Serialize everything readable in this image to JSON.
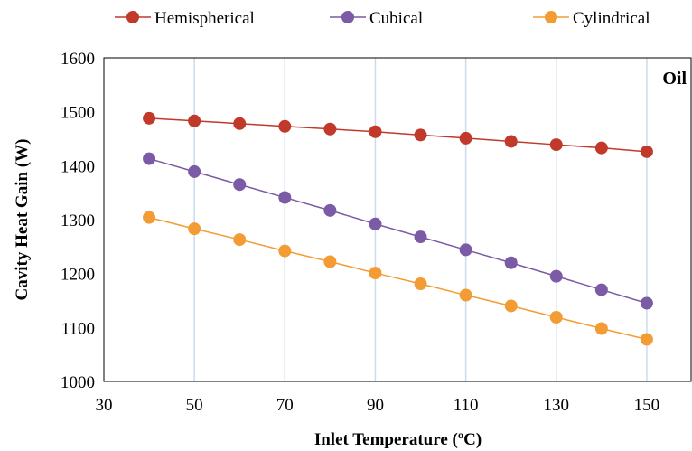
{
  "chart_data": {
    "type": "line",
    "xlabel": "Inlet Temperature (ºC)",
    "ylabel": "Cavity Heat Gain (W)",
    "annotation": "Oil",
    "xlim": [
      30,
      160
    ],
    "ylim": [
      1000,
      1600
    ],
    "xticks": [
      30,
      50,
      70,
      90,
      110,
      130,
      150
    ],
    "yticks": [
      1000,
      1100,
      1200,
      1300,
      1400,
      1500,
      1600
    ],
    "grid": "vertical",
    "legend_position": "top",
    "x": [
      40,
      50,
      60,
      70,
      80,
      90,
      100,
      110,
      120,
      130,
      140,
      150
    ],
    "series": [
      {
        "name": "Hemispherical",
        "color": "#c0392b",
        "values": [
          1488,
          1483,
          1478,
          1473,
          1468,
          1463,
          1457,
          1451,
          1445,
          1439,
          1433,
          1426
        ]
      },
      {
        "name": "Cubical",
        "color": "#7b5aa6",
        "values": [
          1413,
          1389,
          1365,
          1341,
          1317,
          1292,
          1268,
          1244,
          1220,
          1195,
          1170,
          1145
        ]
      },
      {
        "name": "Cylindrical",
        "color": "#f39c34",
        "values": [
          1304,
          1283,
          1263,
          1242,
          1222,
          1201,
          1181,
          1160,
          1140,
          1119,
          1098,
          1078
        ]
      }
    ]
  }
}
